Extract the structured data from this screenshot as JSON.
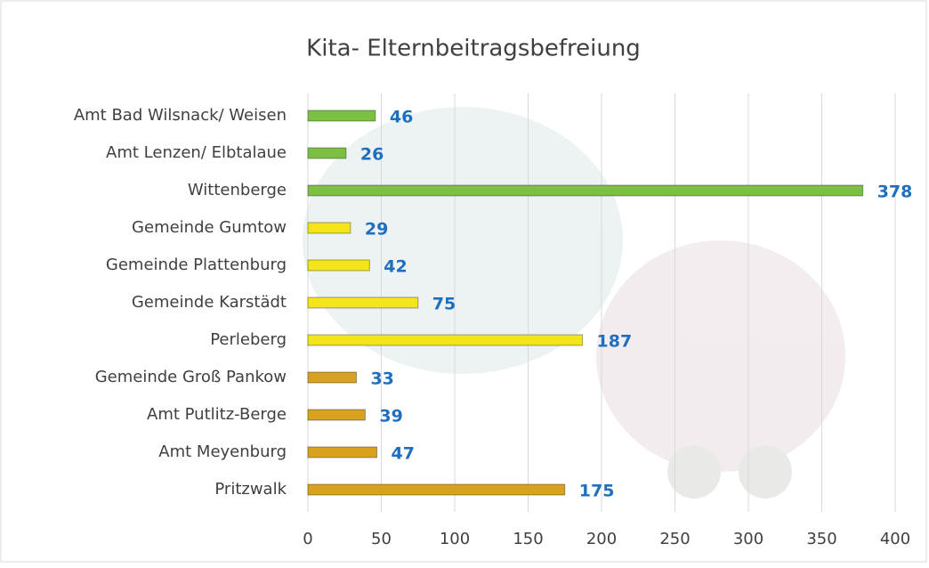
{
  "chart_data": {
    "type": "bar",
    "orientation": "horizontal",
    "title": "Kita- Elternbeitragsbefreiung",
    "categories": [
      "Amt Bad Wilsnack/ Weisen",
      "Amt Lenzen/ Elbtalaue",
      "Wittenberge",
      "Gemeinde Gumtow",
      "Gemeinde Plattenburg",
      "Gemeinde Karstädt",
      "Perleberg",
      "Gemeinde Groß Pankow",
      "Amt Putlitz-Berge",
      "Amt Meyenburg",
      "Pritzwalk"
    ],
    "values": [
      46,
      26,
      378,
      29,
      42,
      75,
      187,
      33,
      39,
      47,
      175
    ],
    "colors": [
      "#7cc043",
      "#7cc043",
      "#7cc043",
      "#f3e41c",
      "#f3e41c",
      "#f3e41c",
      "#f3e41c",
      "#d8a21f",
      "#d8a21f",
      "#d8a21f",
      "#d8a21f"
    ],
    "value_label_color": "#1f6fc0",
    "xlim": [
      0,
      400
    ],
    "xticks": [
      0,
      50,
      100,
      150,
      200,
      250,
      300,
      350,
      400
    ],
    "grid": true
  }
}
